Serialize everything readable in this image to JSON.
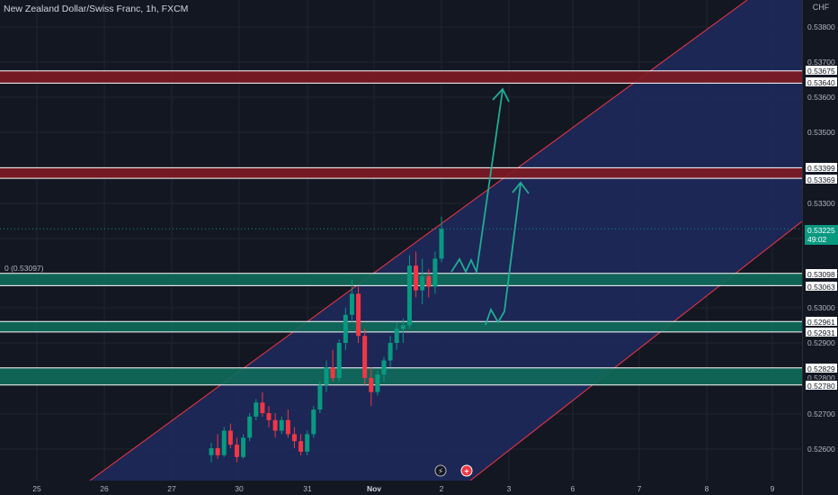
{
  "header": {
    "symbol_title": "New Zealand Dollar/Swiss Franc, 1h, FXCM"
  },
  "price_axis": {
    "currency": "CHF",
    "ticks": [
      "0.53800",
      "0.53700",
      "0.53600",
      "0.53500",
      "0.53300",
      "0.53000",
      "0.52900",
      "0.52800",
      "0.52700",
      "0.52600"
    ],
    "current_price": "0.53225",
    "countdown": "49:02"
  },
  "levels": {
    "ref_label": "0 (0.53097)",
    "tags": [
      "0.53675",
      "0.53640",
      "0.53399",
      "0.53369",
      "0.53098",
      "0.53063",
      "0.52961",
      "0.52931",
      "0.52829",
      "0.52780"
    ]
  },
  "time_axis": {
    "labels": [
      "25",
      "26",
      "27",
      "30",
      "31",
      "Nov",
      "2",
      "3",
      "6",
      "7",
      "8",
      "9"
    ]
  },
  "events": {
    "lightning_icon": "lightning-icon",
    "plus_icon": "economic-event-icon"
  },
  "colors": {
    "background": "#131722",
    "channel_fill": "#1e2a5e",
    "channel_line": "#f23645",
    "resistance_zone": "#801922",
    "support_zone": "#0f6b5a",
    "projection": "#22ab94",
    "candle_up": "#089981",
    "candle_down": "#f23645"
  },
  "chart_data": {
    "type": "candlestick",
    "symbol": "NZDCHF",
    "timeframe": "1h",
    "y_range": [
      0.5254,
      0.5386
    ],
    "resistance_zones": [
      [
        0.5364,
        0.53675
      ],
      [
        0.53369,
        0.53399
      ]
    ],
    "support_zones": [
      [
        0.53063,
        0.53098
      ],
      [
        0.52931,
        0.52961
      ],
      [
        0.5278,
        0.52829
      ]
    ],
    "current_price": 0.53225,
    "candles": [
      [
        0.5258,
        0.52615,
        0.5256,
        0.526
      ],
      [
        0.526,
        0.5264,
        0.5257,
        0.5258
      ],
      [
        0.5258,
        0.5266,
        0.52575,
        0.5265
      ],
      [
        0.5265,
        0.5267,
        0.526,
        0.5261
      ],
      [
        0.5261,
        0.5263,
        0.5256,
        0.52575
      ],
      [
        0.52575,
        0.5264,
        0.5257,
        0.5263
      ],
      [
        0.5263,
        0.527,
        0.5262,
        0.5269
      ],
      [
        0.5269,
        0.5274,
        0.5268,
        0.5273
      ],
      [
        0.5273,
        0.5276,
        0.5269,
        0.527
      ],
      [
        0.527,
        0.5272,
        0.5266,
        0.5268
      ],
      [
        0.5268,
        0.527,
        0.5263,
        0.5265
      ],
      [
        0.5265,
        0.5269,
        0.5264,
        0.5268
      ],
      [
        0.5268,
        0.5271,
        0.5263,
        0.5264
      ],
      [
        0.5264,
        0.5266,
        0.526,
        0.5262
      ],
      [
        0.5262,
        0.5264,
        0.5258,
        0.5259
      ],
      [
        0.5259,
        0.5265,
        0.5258,
        0.5264
      ],
      [
        0.5264,
        0.5272,
        0.5263,
        0.5271
      ],
      [
        0.5271,
        0.5279,
        0.527,
        0.5278
      ],
      [
        0.5278,
        0.5285,
        0.5276,
        0.5283
      ],
      [
        0.5283,
        0.5288,
        0.5279,
        0.528
      ],
      [
        0.528,
        0.5291,
        0.5279,
        0.529
      ],
      [
        0.529,
        0.53,
        0.5288,
        0.5298
      ],
      [
        0.5298,
        0.5308,
        0.5296,
        0.5304
      ],
      [
        0.5304,
        0.5306,
        0.529,
        0.5292
      ],
      [
        0.5292,
        0.5294,
        0.5278,
        0.528
      ],
      [
        0.528,
        0.5283,
        0.5272,
        0.5276
      ],
      [
        0.5276,
        0.5282,
        0.5275,
        0.5281
      ],
      [
        0.5281,
        0.5286,
        0.5279,
        0.5285
      ],
      [
        0.5285,
        0.5292,
        0.5283,
        0.529
      ],
      [
        0.529,
        0.5296,
        0.5288,
        0.5294
      ],
      [
        0.5294,
        0.5297,
        0.529,
        0.5295
      ],
      [
        0.5295,
        0.5315,
        0.5294,
        0.5312
      ],
      [
        0.5312,
        0.5316,
        0.5303,
        0.5305
      ],
      [
        0.5305,
        0.5314,
        0.5301,
        0.5309
      ],
      [
        0.5309,
        0.5311,
        0.5303,
        0.5306
      ],
      [
        0.5306,
        0.5316,
        0.5304,
        0.5314
      ],
      [
        0.5314,
        0.5326,
        0.5313,
        0.53225
      ]
    ]
  }
}
